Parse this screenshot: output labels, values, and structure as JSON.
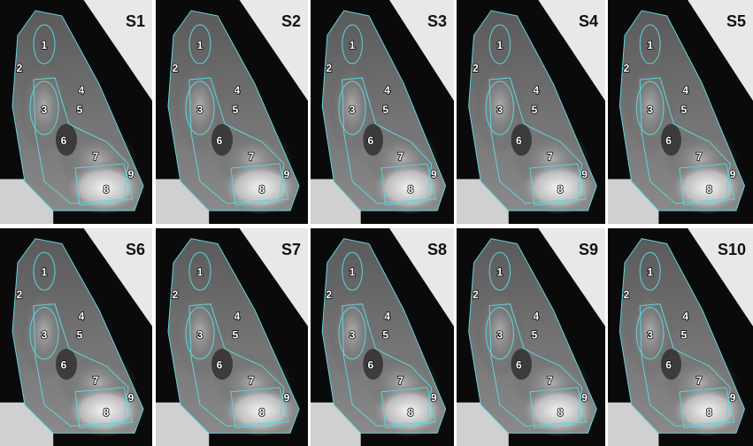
{
  "panels": [
    {
      "label": "S1",
      "regions": [
        "1",
        "2",
        "3",
        "4",
        "5",
        "6",
        "7",
        "8",
        "9"
      ]
    },
    {
      "label": "S2",
      "regions": [
        "1",
        "2",
        "3",
        "4",
        "5",
        "6",
        "7",
        "8",
        "9"
      ]
    },
    {
      "label": "S3",
      "regions": [
        "1",
        "2",
        "3",
        "4",
        "5",
        "6",
        "7",
        "8",
        "9"
      ]
    },
    {
      "label": "S4",
      "regions": [
        "1",
        "2",
        "3",
        "4",
        "5",
        "6",
        "7",
        "8",
        "9"
      ]
    },
    {
      "label": "S5",
      "regions": [
        "1",
        "2",
        "3",
        "4",
        "5",
        "6",
        "7",
        "8",
        "9"
      ]
    },
    {
      "label": "S6",
      "regions": [
        "1",
        "2",
        "3",
        "4",
        "5",
        "6",
        "7",
        "8",
        "9"
      ]
    },
    {
      "label": "S7",
      "regions": [
        "1",
        "2",
        "3",
        "4",
        "5",
        "6",
        "7",
        "8",
        "9"
      ]
    },
    {
      "label": "S8",
      "regions": [
        "1",
        "2",
        "3",
        "4",
        "5",
        "6",
        "7",
        "8",
        "9"
      ]
    },
    {
      "label": "S9",
      "regions": [
        "1",
        "2",
        "3",
        "4",
        "5",
        "6",
        "7",
        "8",
        "9"
      ]
    },
    {
      "label": "S10",
      "regions": [
        "1",
        "2",
        "3",
        "4",
        "5",
        "6",
        "7",
        "8",
        "9"
      ]
    }
  ]
}
